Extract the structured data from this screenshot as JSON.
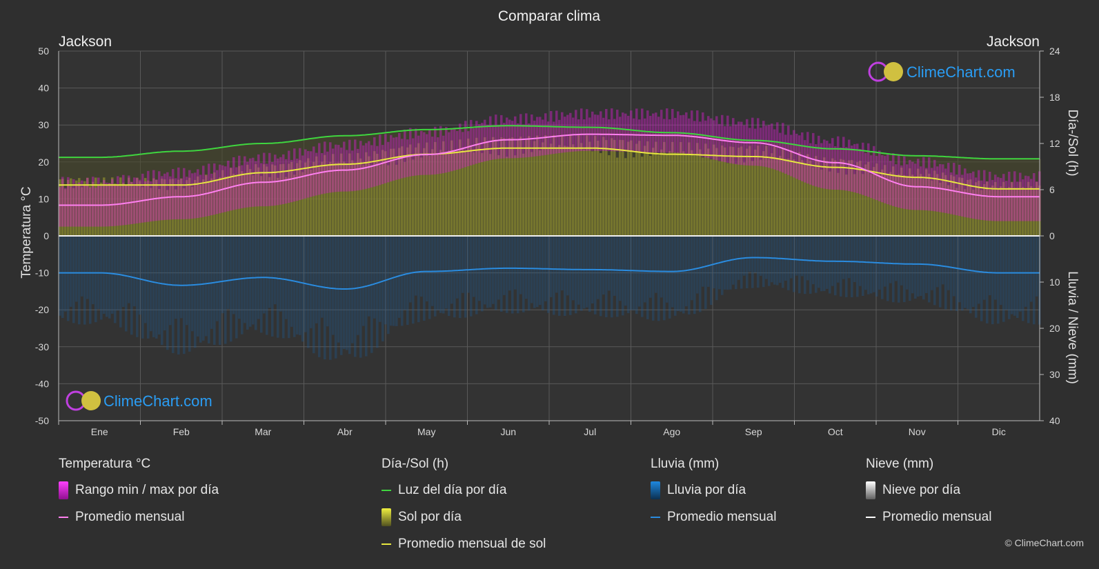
{
  "title": "Comparar clima",
  "left_city": "Jackson",
  "right_city": "Jackson",
  "copyright": "© ClimeChart.com",
  "watermark": "ClimeChart.com",
  "colors": {
    "background": "#2f2f2f",
    "temp_range": "#d020c8",
    "temp_avg": "#ff80f0",
    "daylight": "#3fd63f",
    "sunshine": "#b8b830",
    "sunshine_avg": "#e8e840",
    "rain": "#1e78c8",
    "rain_avg": "#2a8ce0",
    "snow_avg": "#ffffff",
    "watermark": "#2a9df4"
  },
  "chart_data": {
    "type": "line",
    "title": "Comparar clima",
    "categories": [
      "Ene",
      "Feb",
      "Mar",
      "Abr",
      "May",
      "Jun",
      "Jul",
      "Ago",
      "Sep",
      "Oct",
      "Nov",
      "Dic"
    ],
    "axes": {
      "left": {
        "label": "Temperatura °C",
        "range": [
          -50,
          50
        ],
        "ticks": [
          50,
          40,
          30,
          20,
          10,
          0,
          -10,
          -20,
          -30,
          -40,
          -50
        ]
      },
      "right_top": {
        "label": "Día-/Sol (h)",
        "range": [
          0,
          24
        ],
        "ticks": [
          24,
          18,
          12,
          6,
          0
        ]
      },
      "right_bottom": {
        "label": "Lluvia / Nieve (mm)",
        "range": [
          0,
          40
        ],
        "ticks": [
          0,
          10,
          20,
          30,
          40
        ]
      }
    },
    "grid": true,
    "series": [
      {
        "name": "Luz del día por día",
        "axis": "right_top",
        "values": [
          10.2,
          11.0,
          12.0,
          13.0,
          13.8,
          14.3,
          14.1,
          13.4,
          12.4,
          11.3,
          10.4,
          10.0
        ]
      },
      {
        "name": "Promedio mensual de sol",
        "axis": "right_top",
        "values": [
          6.6,
          6.6,
          8.2,
          9.3,
          10.6,
          11.4,
          11.4,
          10.6,
          10.3,
          8.9,
          7.6,
          6.1
        ]
      },
      {
        "name": "Promedio mensual",
        "axis": "left",
        "kind": "temperature",
        "values": [
          8.3,
          10.6,
          14.5,
          17.8,
          22.0,
          26.0,
          27.5,
          27.2,
          25.2,
          19.8,
          13.3,
          10.6
        ]
      },
      {
        "name": "Rango min / max por día",
        "axis": "left",
        "kind": "temperature_range",
        "min": [
          2.5,
          4.5,
          8.0,
          12.0,
          16.5,
          21.0,
          23.0,
          22.5,
          19.0,
          12.5,
          7.0,
          4.0
        ],
        "max": [
          14.5,
          17.0,
          21.0,
          24.5,
          28.0,
          31.5,
          33.0,
          33.0,
          30.5,
          25.5,
          20.0,
          16.0
        ]
      },
      {
        "name": "Promedio mensual",
        "axis": "right_bottom",
        "kind": "rain",
        "values": [
          8.0,
          10.7,
          9.0,
          11.5,
          7.7,
          7.0,
          7.3,
          7.7,
          4.7,
          5.5,
          6.1,
          8.0
        ]
      }
    ]
  },
  "legend": {
    "groups": [
      {
        "title": "Temperatura °C",
        "items": [
          {
            "label": "Rango min / max por día",
            "kind": "box",
            "color": "temp_range"
          },
          {
            "label": "Promedio mensual",
            "kind": "line",
            "color": "temp_avg"
          }
        ]
      },
      {
        "title": "Día-/Sol (h)",
        "items": [
          {
            "label": "Luz del día por día",
            "kind": "line",
            "color": "daylight"
          },
          {
            "label": "Sol por día",
            "kind": "box",
            "color": "sunshine"
          },
          {
            "label": "Promedio mensual de sol",
            "kind": "line",
            "color": "sunshine_avg"
          }
        ]
      },
      {
        "title": "Lluvia (mm)",
        "items": [
          {
            "label": "Lluvia por día",
            "kind": "box",
            "color": "rain"
          },
          {
            "label": "Promedio mensual",
            "kind": "line",
            "color": "rain_avg"
          }
        ]
      },
      {
        "title": "Nieve (mm)",
        "items": [
          {
            "label": "Nieve por día",
            "kind": "box",
            "color": "snow_box"
          },
          {
            "label": "Promedio mensual",
            "kind": "line",
            "color": "snow_avg"
          }
        ]
      }
    ]
  }
}
